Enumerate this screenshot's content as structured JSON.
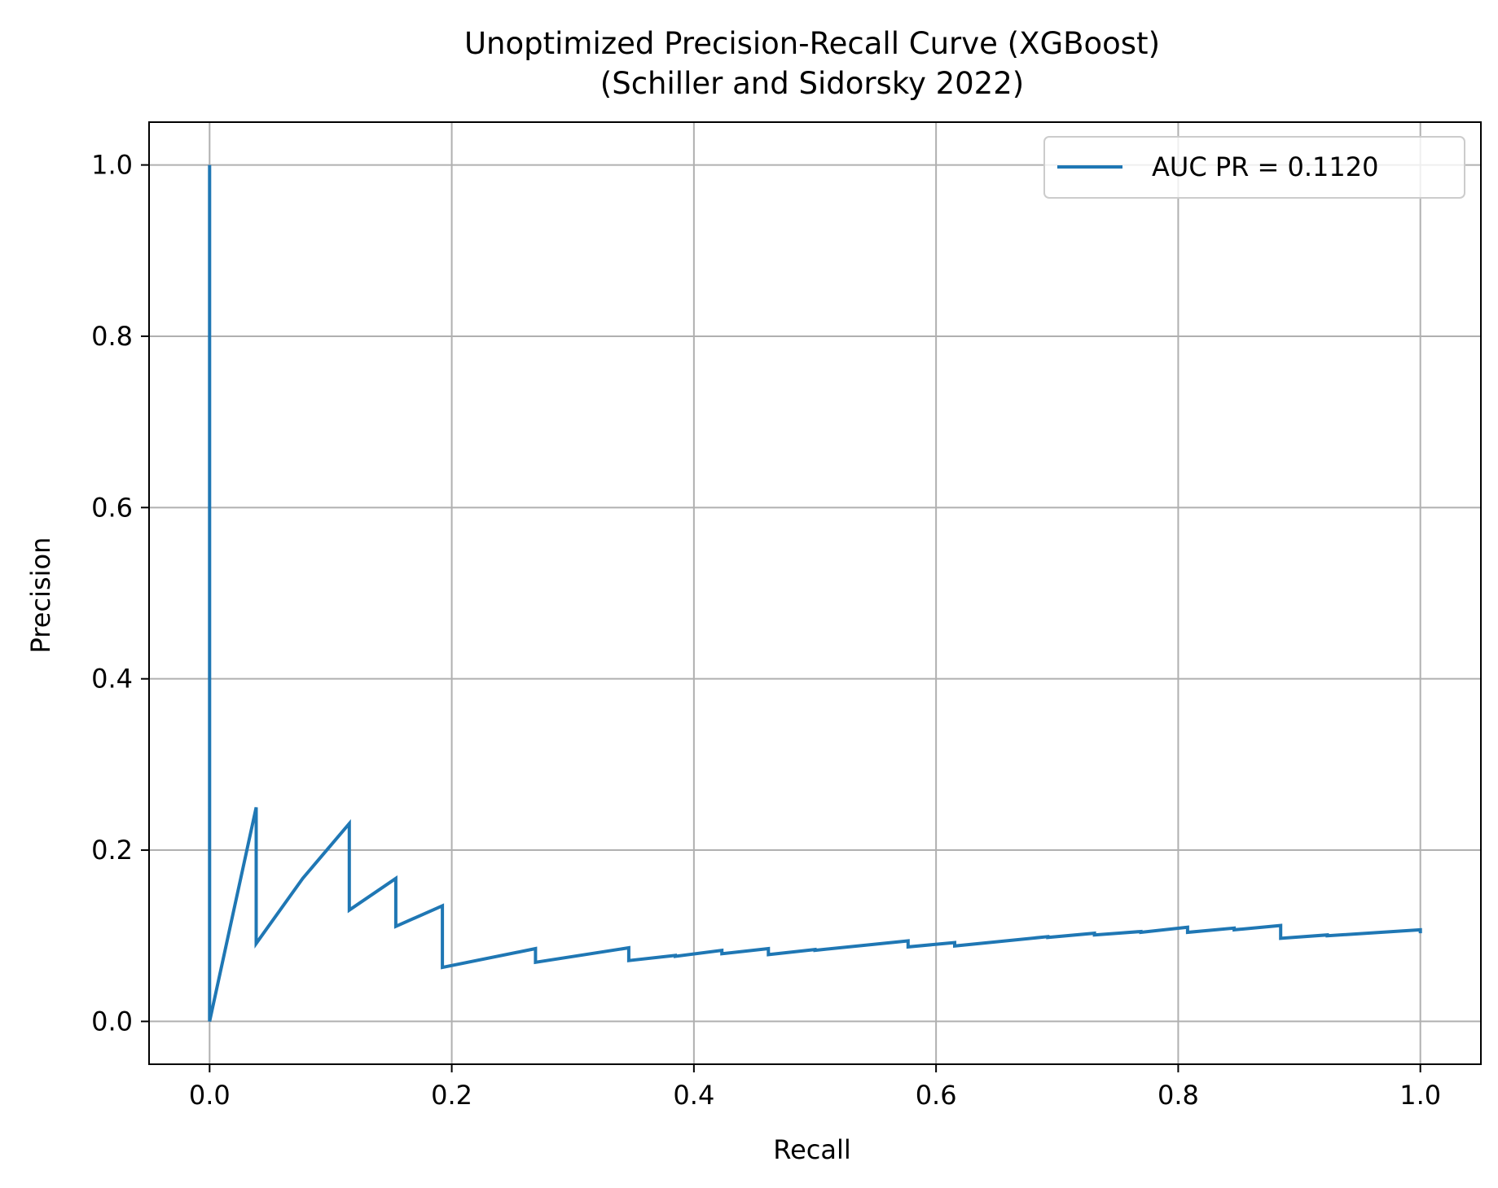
{
  "chart_data": {
    "type": "line",
    "title": "Unoptimized Precision-Recall Curve (XGBoost)",
    "subtitle": "(Schiller and Sidorsky 2022)",
    "xlabel": "Recall",
    "ylabel": "Precision",
    "xlim": [
      -0.05,
      1.05
    ],
    "ylim": [
      -0.05,
      1.05
    ],
    "xticks": [
      0.0,
      0.2,
      0.4,
      0.6,
      0.8,
      1.0
    ],
    "yticks": [
      0.0,
      0.2,
      0.4,
      0.6,
      0.8,
      1.0
    ],
    "xtick_labels": [
      "0.0",
      "0.2",
      "0.4",
      "0.6",
      "0.8",
      "1.0"
    ],
    "ytick_labels": [
      "0.0",
      "0.2",
      "0.4",
      "0.6",
      "0.8",
      "1.0"
    ],
    "grid": true,
    "legend_position": "top-right",
    "series": [
      {
        "name": "AUC PR = 0.1120",
        "color": "#1f77b4",
        "x": [
          0.0,
          0.0,
          0.0385,
          0.0385,
          0.0769,
          0.1154,
          0.1154,
          0.1538,
          0.1538,
          0.1923,
          0.1923,
          0.2692,
          0.2692,
          0.3462,
          0.3462,
          0.3846,
          0.3846,
          0.4231,
          0.4231,
          0.4615,
          0.4615,
          0.5,
          0.5,
          0.5769,
          0.5769,
          0.6154,
          0.6154,
          0.6923,
          0.6923,
          0.7308,
          0.7308,
          0.7692,
          0.7692,
          0.8077,
          0.8077,
          0.8462,
          0.8462,
          0.8846,
          0.8846,
          0.9231,
          0.9231,
          1.0,
          1.0
        ],
        "y": [
          1.0,
          0.0,
          0.25,
          0.091,
          0.167,
          0.231,
          0.13,
          0.167,
          0.111,
          0.135,
          0.063,
          0.085,
          0.069,
          0.086,
          0.071,
          0.077,
          0.076,
          0.083,
          0.079,
          0.085,
          0.078,
          0.084,
          0.083,
          0.094,
          0.087,
          0.092,
          0.088,
          0.099,
          0.098,
          0.103,
          0.101,
          0.105,
          0.104,
          0.11,
          0.104,
          0.109,
          0.107,
          0.112,
          0.097,
          0.101,
          0.1,
          0.107,
          0.103
        ]
      }
    ]
  }
}
